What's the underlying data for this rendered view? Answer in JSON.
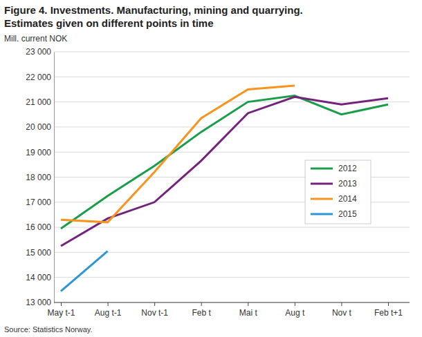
{
  "chart_data": {
    "type": "line",
    "title": "Figure 4. Investments. Manufacturing, mining and quarrying.",
    "subtitle": "Estimates given on different points in time",
    "y_label": "Mill. current NOK",
    "source": "Source: Statistics Norway.",
    "categories": [
      "May t-1",
      "Aug t-1",
      "Nov t-1",
      "Feb t",
      "Mai t",
      "Aug t",
      "Nov t",
      "Feb t+1"
    ],
    "series": [
      {
        "name": "2012",
        "color": "#1a9d49",
        "values": [
          15950,
          17250,
          18450,
          19800,
          21000,
          21250,
          20500,
          20900
        ]
      },
      {
        "name": "2013",
        "color": "#75227d",
        "values": [
          15250,
          16350,
          17000,
          18650,
          20550,
          21200,
          20900,
          21150
        ]
      },
      {
        "name": "2014",
        "color": "#f7941d",
        "values": [
          16300,
          16200,
          18200,
          20350,
          21500,
          21650,
          null,
          null
        ]
      },
      {
        "name": "2015",
        "color": "#2c95d3",
        "values": [
          13450,
          15050,
          null,
          null,
          null,
          null,
          null,
          null
        ]
      }
    ],
    "ylim": [
      13000,
      23000
    ],
    "yticks": [
      {
        "value": 13000,
        "label": "13 000"
      },
      {
        "value": 14000,
        "label": "14 000"
      },
      {
        "value": 15000,
        "label": "15 000"
      },
      {
        "value": 16000,
        "label": "16 000"
      },
      {
        "value": 17000,
        "label": "17 000"
      },
      {
        "value": 18000,
        "label": "18 000"
      },
      {
        "value": 19000,
        "label": "19 000"
      },
      {
        "value": 20000,
        "label": "20 000"
      },
      {
        "value": 21000,
        "label": "21 000"
      },
      {
        "value": 22000,
        "label": "22 000"
      },
      {
        "value": 23000,
        "label": "23 000"
      }
    ],
    "grid": true,
    "legend": "right"
  }
}
